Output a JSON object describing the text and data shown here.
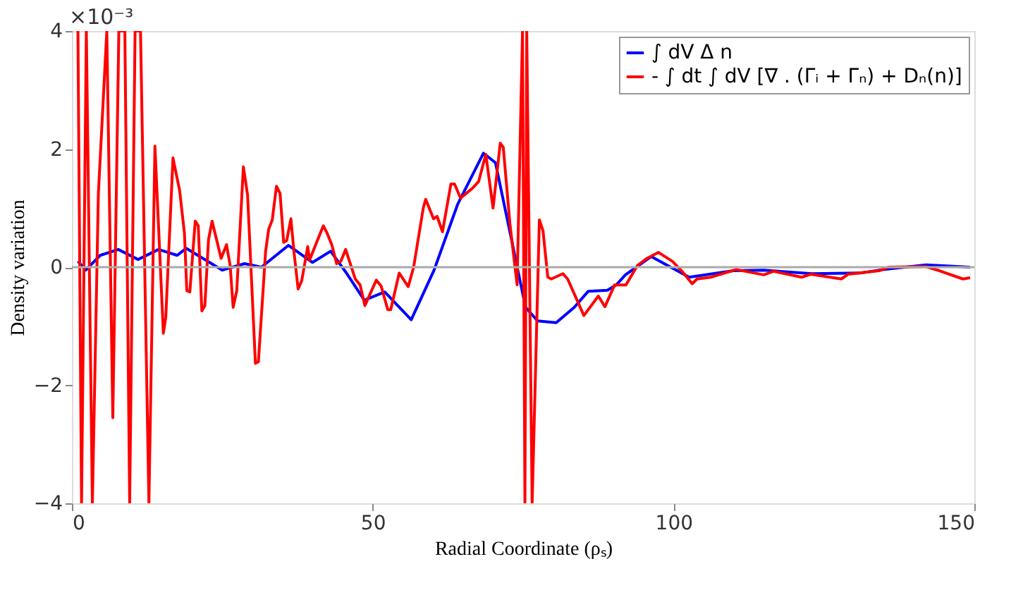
{
  "chart_data": {
    "type": "line",
    "xlabel": "Radial Coordinate (ρₛ)",
    "ylabel": "Density variation",
    "annotations": [
      "×10⁻³"
    ],
    "xlim": [
      0,
      150
    ],
    "ylim": [
      -4,
      4
    ],
    "xticks": [
      0,
      50,
      100,
      150
    ],
    "yticks": [
      -4,
      -2,
      0,
      2,
      4
    ],
    "grid": false,
    "legend": "top right",
    "line_style": "solid",
    "marker": "none",
    "ref_lines": [
      {
        "axis": "y",
        "value": 0,
        "color": "#aaaaaa"
      }
    ],
    "series": [
      {
        "name": "∫ dV Δ n",
        "color": "#0000ff",
        "x": [
          1,
          2.3,
          4.7,
          7.7,
          11,
          14.4,
          17.5,
          19,
          25,
          28.7,
          31.5,
          36,
          40,
          43,
          45.5,
          48.6,
          52,
          56.4,
          60.2,
          64.1,
          68.4,
          70.4,
          73,
          75.4,
          77.4,
          80.5,
          83.5,
          85.8,
          89,
          90.5,
          92,
          96.3,
          102.6,
          110,
          115,
          123,
          131,
          135,
          142,
          149.3
        ],
        "values": [
          0.1,
          -0.05,
          0.2,
          0.3,
          0.13,
          0.3,
          0.2,
          0.32,
          -0.05,
          0.06,
          0.0,
          0.37,
          0.08,
          0.27,
          -0.08,
          -0.56,
          -0.42,
          -0.89,
          -0.05,
          1.06,
          1.93,
          1.77,
          0.5,
          -0.68,
          -0.91,
          -0.94,
          -0.68,
          -0.41,
          -0.39,
          -0.3,
          -0.13,
          0.18,
          -0.17,
          -0.06,
          -0.05,
          -0.11,
          -0.1,
          -0.04,
          0.04,
          0.0
        ]
      },
      {
        "name": "- ∫ dt ∫ dV [∇ . (Γᵢ + Γₙ) + Dₙ(n)]",
        "color": "#ff0000",
        "x": [
          1,
          1.6,
          2.4,
          3.4,
          4.4,
          5.8,
          6.8,
          7.8,
          8.8,
          9.6,
          10.5,
          11.4,
          12.8,
          13.8,
          15.2,
          15.6,
          16.8,
          17.9,
          18.7,
          19.1,
          19.6,
          20.5,
          21,
          21.6,
          22.1,
          22.7,
          23.3,
          24.8,
          25.7,
          26.3,
          26.8,
          27.4,
          28.5,
          29.2,
          30.5,
          31,
          32.2,
          32.7,
          33.3,
          34,
          34.6,
          35.2,
          35.7,
          36.4,
          36.9,
          37.6,
          38.2,
          39.2,
          39.5,
          41.3,
          41.8,
          42.4,
          43.2,
          44,
          44.7,
          45.5,
          47.1,
          47.9,
          48.7,
          50.6,
          51.4,
          52.5,
          53,
          54.4,
          55.9,
          56.8,
          58.4,
          58.8,
          60.1,
          60.7,
          61.6,
          63,
          63.6,
          64.6,
          66.5,
          67.6,
          68.8,
          70,
          71.2,
          71.7,
          72.8,
          74,
          74.9,
          75.3,
          75.6,
          76.5,
          77.7,
          78.3,
          79.1,
          79.7,
          81.6,
          82.4,
          85.1,
          87.5,
          88.6,
          90.2,
          92.1,
          94,
          95.6,
          97.5,
          99.8,
          101.5,
          103.1,
          103.9,
          106.2,
          110.4,
          115,
          116.6,
          121.3,
          122.8,
          127.9,
          129,
          134.2,
          135.7,
          141.9,
          144.2,
          148.1,
          149.3
        ],
        "values": [
          4,
          -4,
          4,
          -4,
          1.25,
          4,
          -2.55,
          4,
          4,
          -4,
          4,
          4,
          -4,
          2.05,
          -1.12,
          -0.85,
          1.85,
          1.3,
          0.58,
          -0.4,
          -0.42,
          0.78,
          0.7,
          -0.74,
          -0.65,
          0.46,
          0.78,
          0.15,
          0.38,
          0.03,
          -0.68,
          -0.4,
          1.7,
          1.22,
          -1.63,
          -1.6,
          0.27,
          0.64,
          0.8,
          1.37,
          1.25,
          0.42,
          0.45,
          0.82,
          0.27,
          -0.37,
          -0.23,
          0.35,
          0.12,
          0.58,
          0.7,
          0.58,
          0.38,
          0.06,
          0.1,
          0.3,
          -0.2,
          -0.3,
          -0.65,
          -0.22,
          -0.32,
          -0.72,
          -0.72,
          -0.1,
          -0.33,
          0.0,
          1.0,
          1.15,
          0.82,
          0.86,
          0.6,
          1.41,
          1.41,
          1.17,
          1.33,
          1.45,
          1.91,
          1.0,
          2.1,
          2.03,
          0.74,
          -0.3,
          4,
          -4,
          4,
          -4,
          0.8,
          0.62,
          -0.17,
          -0.2,
          -0.11,
          -0.2,
          -0.82,
          -0.49,
          -0.67,
          -0.3,
          -0.3,
          0.03,
          0.15,
          0.25,
          0.1,
          -0.08,
          -0.28,
          -0.2,
          -0.17,
          -0.04,
          -0.13,
          -0.07,
          -0.17,
          -0.12,
          -0.2,
          -0.12,
          -0.06,
          0.0,
          0.01,
          -0.06,
          -0.2,
          -0.18
        ]
      }
    ]
  }
}
